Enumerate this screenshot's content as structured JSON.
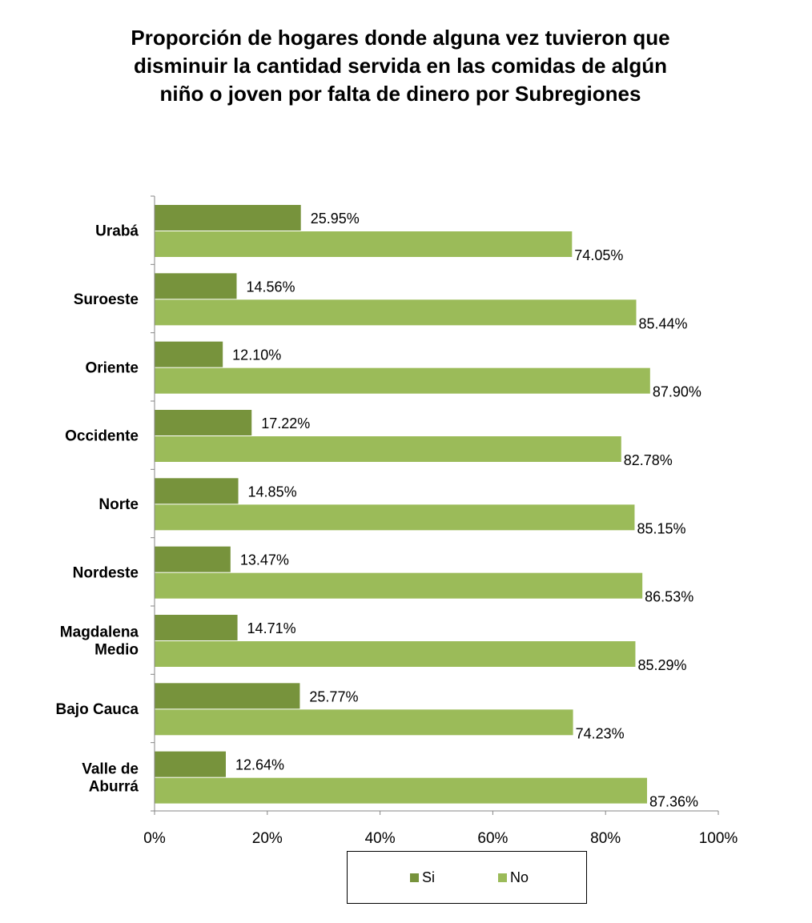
{
  "chart_data": {
    "type": "bar",
    "orientation": "horizontal",
    "title_lines": [
      "Proporción de hogares donde alguna vez tuvieron que",
      "disminuir la cantidad servida en las comidas de algún",
      "niño o joven por falta de dinero por Subregiones"
    ],
    "categories": [
      [
        "Urabá"
      ],
      [
        "Suroeste"
      ],
      [
        "Oriente"
      ],
      [
        "Occidente"
      ],
      [
        "Norte"
      ],
      [
        "Nordeste"
      ],
      [
        "Magdalena",
        "Medio"
      ],
      [
        "Bajo Cauca"
      ],
      [
        "Valle de",
        "Aburrá"
      ]
    ],
    "series": [
      {
        "name": "Si",
        "color": "#77933c",
        "values": [
          25.95,
          14.56,
          12.1,
          17.22,
          14.85,
          13.47,
          14.71,
          25.77,
          12.64
        ],
        "labels": [
          "25.95%",
          "14.56%",
          "12.10%",
          "17.22%",
          "14.85%",
          "13.47%",
          "14.71%",
          "25.77%",
          "12.64%"
        ]
      },
      {
        "name": "No",
        "color": "#9bbb59",
        "values": [
          74.05,
          85.44,
          87.9,
          82.78,
          85.15,
          86.53,
          85.29,
          74.23,
          87.36
        ],
        "labels": [
          "74.05%",
          "85.44%",
          "87.90%",
          "82.78%",
          "85.15%",
          "86.53%",
          "85.29%",
          "74.23%",
          "87.36%"
        ]
      }
    ],
    "xlim": [
      0,
      100
    ],
    "x_ticks": [
      0,
      20,
      40,
      60,
      80,
      100
    ],
    "x_tick_labels": [
      "0%",
      "20%",
      "40%",
      "60%",
      "80%",
      "100%"
    ],
    "grid": false,
    "legend_position": "bottom"
  }
}
